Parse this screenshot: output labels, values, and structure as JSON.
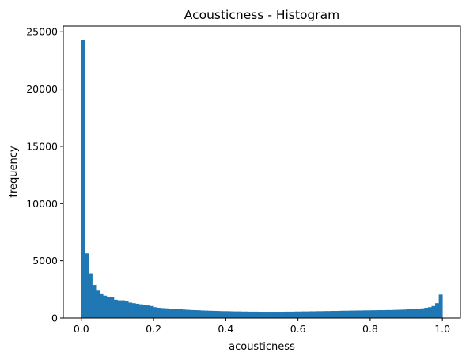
{
  "chart_data": {
    "type": "bar",
    "title": "Acousticness - Histogram",
    "xlabel": "acousticness",
    "ylabel": "frequency",
    "xlim": [
      -0.05,
      1.05
    ],
    "ylim": [
      0,
      25500
    ],
    "xticks": [
      0.0,
      0.2,
      0.4,
      0.6,
      0.8,
      1.0
    ],
    "xtick_labels": [
      "0.0",
      "0.2",
      "0.4",
      "0.6",
      "0.8",
      "1.0"
    ],
    "yticks": [
      0,
      5000,
      10000,
      15000,
      20000,
      25000
    ],
    "ytick_labels": [
      "0",
      "5000",
      "10000",
      "15000",
      "20000",
      "25000"
    ],
    "bar_color": "#1f77b4",
    "grid": false,
    "bins": {
      "start": 0.0,
      "width": 0.01,
      "counts": [
        24300,
        5650,
        3900,
        2900,
        2400,
        2150,
        1950,
        1850,
        1800,
        1600,
        1550,
        1550,
        1450,
        1350,
        1300,
        1250,
        1200,
        1150,
        1100,
        1050,
        950,
        900,
        870,
        850,
        820,
        800,
        780,
        760,
        740,
        720,
        700,
        690,
        680,
        660,
        650,
        640,
        630,
        620,
        610,
        600,
        600,
        590,
        580,
        580,
        570,
        570,
        560,
        560,
        560,
        550,
        550,
        550,
        550,
        550,
        550,
        550,
        560,
        560,
        560,
        570,
        570,
        580,
        580,
        590,
        590,
        600,
        600,
        610,
        610,
        620,
        620,
        630,
        640,
        640,
        650,
        650,
        660,
        660,
        670,
        670,
        680,
        680,
        690,
        690,
        700,
        700,
        710,
        720,
        730,
        740,
        760,
        780,
        800,
        820,
        850,
        900,
        950,
        1050,
        1300,
        2050
      ]
    }
  }
}
